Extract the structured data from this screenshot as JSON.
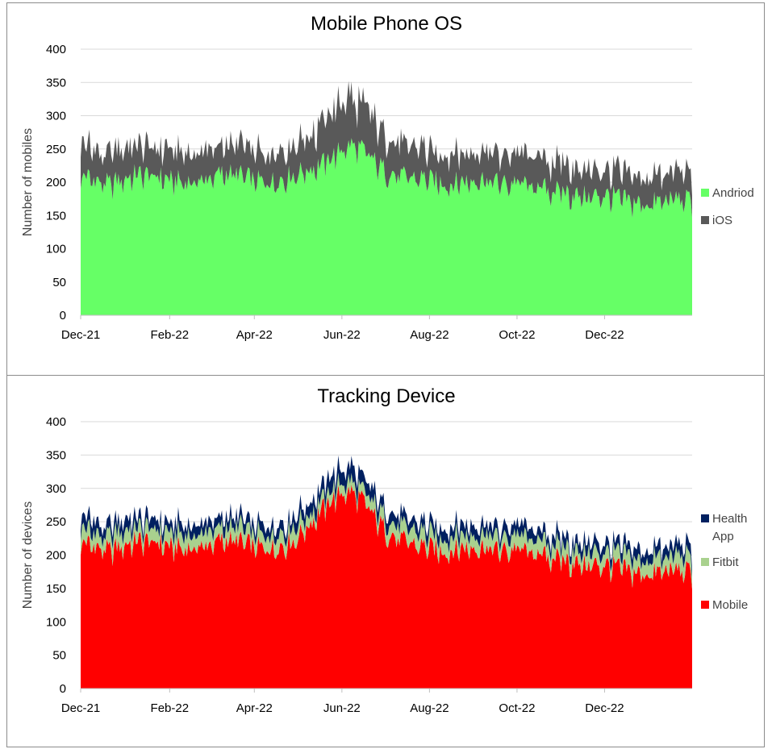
{
  "chart_data": [
    {
      "type": "area",
      "stacked": true,
      "title": "Mobile Phone OS",
      "ylabel": "Number of mobiles",
      "xlabel": "",
      "ylim": [
        0,
        400
      ],
      "yticks": [
        0,
        50,
        100,
        150,
        200,
        250,
        300,
        350,
        400
      ],
      "xticks": [
        "Dec-21",
        "Feb-22",
        "Apr-22",
        "Jun-22",
        "Aug-22",
        "Oct-22",
        "Dec-22"
      ],
      "x_range": [
        "2021-12-01",
        "2023-01-31"
      ],
      "grid": true,
      "legend": "right",
      "series": [
        {
          "name": "Andriod",
          "color": "#66ff66",
          "values": [
            210,
            205,
            200,
            195,
            200,
            205,
            210,
            210,
            208,
            205,
            200,
            200,
            198,
            202,
            205,
            210,
            212,
            210,
            205,
            200,
            198,
            200,
            205,
            210,
            215,
            220,
            225,
            235,
            245,
            255,
            250,
            240,
            225,
            215,
            210,
            205,
            205,
            205,
            200,
            198,
            195,
            200,
            200,
            205,
            200,
            198,
            195,
            200,
            195,
            190,
            190,
            185,
            185,
            180,
            178,
            175,
            180,
            178,
            175,
            170,
            168,
            165,
            168,
            170,
            175,
            172,
            170
          ]
        },
        {
          "name": "iOS",
          "color": "#595959",
          "values": [
            55,
            50,
            45,
            45,
            45,
            48,
            45,
            45,
            45,
            45,
            45,
            45,
            45,
            45,
            45,
            45,
            45,
            45,
            45,
            45,
            45,
            45,
            45,
            45,
            50,
            55,
            60,
            65,
            70,
            72,
            70,
            65,
            60,
            55,
            50,
            50,
            45,
            45,
            45,
            45,
            45,
            45,
            45,
            45,
            45,
            45,
            45,
            45,
            45,
            45,
            45,
            45,
            45,
            45,
            45,
            42,
            42,
            42,
            42,
            40,
            40,
            40,
            40,
            40,
            40,
            40,
            40
          ]
        }
      ]
    },
    {
      "type": "area",
      "stacked": true,
      "title": "Tracking Device",
      "ylabel": "Number of devices",
      "xlabel": "",
      "ylim": [
        0,
        400
      ],
      "yticks": [
        0,
        50,
        100,
        150,
        200,
        250,
        300,
        350,
        400
      ],
      "xticks": [
        "Dec-21",
        "Feb-22",
        "Apr-22",
        "Jun-22",
        "Aug-22",
        "Oct-22",
        "Dec-22"
      ],
      "x_range": [
        "2021-12-01",
        "2023-01-31"
      ],
      "grid": true,
      "legend": "right",
      "series": [
        {
          "name": "Mobile",
          "color": "#ff0000",
          "values": [
            220,
            215,
            210,
            205,
            210,
            215,
            220,
            220,
            218,
            215,
            210,
            210,
            208,
            212,
            215,
            220,
            222,
            220,
            215,
            210,
            208,
            210,
            215,
            220,
            235,
            250,
            265,
            280,
            290,
            295,
            285,
            270,
            250,
            235,
            225,
            218,
            215,
            212,
            208,
            205,
            205,
            210,
            210,
            212,
            210,
            205,
            205,
            210,
            205,
            200,
            198,
            195,
            192,
            188,
            185,
            182,
            185,
            183,
            180,
            175,
            172,
            170,
            172,
            175,
            178,
            175,
            172
          ]
        },
        {
          "name": "Fitbit",
          "color": "#a9d18e",
          "values": [
            25,
            22,
            20,
            20,
            22,
            22,
            20,
            20,
            22,
            20,
            20,
            22,
            20,
            20,
            22,
            20,
            20,
            22,
            20,
            20,
            22,
            20,
            20,
            22,
            18,
            15,
            15,
            15,
            15,
            15,
            15,
            15,
            18,
            20,
            20,
            22,
            20,
            20,
            22,
            20,
            20,
            22,
            20,
            20,
            22,
            20,
            20,
            22,
            20,
            20,
            22,
            20,
            20,
            22,
            20,
            20,
            22,
            20,
            20,
            22,
            20,
            20,
            22,
            20,
            20,
            22,
            20
          ]
        },
        {
          "name": "Health App",
          "color": "#002060",
          "values": [
            20,
            18,
            15,
            15,
            15,
            16,
            15,
            15,
            15,
            15,
            15,
            15,
            15,
            15,
            15,
            15,
            15,
            15,
            15,
            15,
            15,
            15,
            15,
            15,
            17,
            18,
            20,
            22,
            22,
            22,
            22,
            20,
            17,
            15,
            15,
            15,
            15,
            15,
            15,
            15,
            15,
            15,
            15,
            15,
            15,
            15,
            15,
            15,
            15,
            15,
            15,
            15,
            15,
            15,
            15,
            15,
            15,
            15,
            15,
            15,
            15,
            15,
            15,
            15,
            15,
            15,
            15
          ]
        }
      ]
    }
  ]
}
